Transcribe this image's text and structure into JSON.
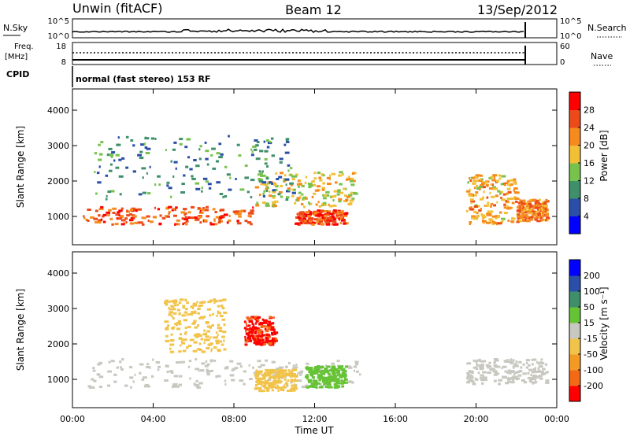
{
  "header": {
    "station": "Unwin (fitACF)",
    "beam": "Beam 12",
    "date": "13/Sep/2012"
  },
  "top_panels": {
    "nsky": {
      "label": "N.Sky",
      "ticks": [
        "10^5",
        "10^0"
      ]
    },
    "nsearch": {
      "label": "N.Search",
      "ticks": [
        "10^5",
        "10^0"
      ]
    },
    "freq": {
      "label_line1": "Freq.",
      "label_line2": "[MHz]",
      "ticks": [
        "18",
        "8"
      ]
    },
    "nave": {
      "label": "Nave",
      "ticks": [
        "60",
        "0"
      ]
    },
    "cpid": {
      "label": "CPID",
      "text": "normal (fast stereo) 153 RF"
    }
  },
  "colors": {
    "power_scale": [
      "#0000ff",
      "#2b4fa8",
      "#3f8f6a",
      "#77c24d",
      "#f2c037",
      "#f58a1e",
      "#ec4a1a",
      "#ff0000"
    ],
    "velocity_scale": [
      "#ff0000",
      "#f36a16",
      "#f39a25",
      "#f2c34a",
      "#c8c8c0",
      "#67c336",
      "#3f8f6a",
      "#2b4fa8",
      "#0000ff"
    ]
  },
  "chart_data": [
    {
      "type": "heatmap",
      "panel": "power",
      "ylabel": "Slant Range [km]",
      "ylim": [
        200,
        4600
      ],
      "yticks": [
        "1000",
        "2000",
        "3000",
        "4000"
      ],
      "xlim_hours": [
        0,
        24
      ],
      "colorbar": {
        "label": "Power [dB]",
        "ticks": [
          "4",
          "8",
          "12",
          "16",
          "20",
          "24",
          "28"
        ],
        "range": [
          0,
          32
        ]
      },
      "regions": [
        {
          "t": [
            0.5,
            9.0
          ],
          "r": [
            800,
            1300
          ],
          "value": 25
        },
        {
          "t": [
            9.0,
            14.0
          ],
          "r": [
            1300,
            2300
          ],
          "value": 17
        },
        {
          "t": [
            11.0,
            13.5
          ],
          "r": [
            800,
            1200
          ],
          "value": 27
        },
        {
          "t": [
            1.0,
            11.0
          ],
          "r": [
            1500,
            3300
          ],
          "value": 9
        },
        {
          "t": [
            19.5,
            22.0
          ],
          "r": [
            800,
            2200
          ],
          "value": 20
        },
        {
          "t": [
            22.0,
            23.5
          ],
          "r": [
            900,
            1500
          ],
          "value": 23
        }
      ]
    },
    {
      "type": "heatmap",
      "panel": "velocity",
      "ylabel": "Slant Range [km]",
      "xlabel": "Time UT",
      "ylim": [
        200,
        4600
      ],
      "yticks": [
        "1000",
        "2000",
        "3000",
        "4000"
      ],
      "xticks": [
        "00:00",
        "04:00",
        "08:00",
        "12:00",
        "16:00",
        "20:00",
        "00:00"
      ],
      "xlim_hours": [
        0,
        24
      ],
      "colorbar": {
        "label": "Velocity [m s⁻¹]",
        "ticks": [
          "-200",
          "-100",
          "-50",
          "-15",
          "15",
          "50",
          "100",
          "200"
        ],
        "range": [
          -250,
          250
        ]
      },
      "regions": [
        {
          "t": [
            0.5,
            14.5
          ],
          "r": [
            800,
            1600
          ],
          "value": 0
        },
        {
          "t": [
            19.5,
            23.5
          ],
          "r": [
            900,
            1600
          ],
          "value": 0
        },
        {
          "t": [
            4.5,
            7.5
          ],
          "r": [
            1800,
            3300
          ],
          "value": -40
        },
        {
          "t": [
            8.5,
            10.0
          ],
          "r": [
            2000,
            2800
          ],
          "value": -200
        },
        {
          "t": [
            11.5,
            13.5
          ],
          "r": [
            800,
            1400
          ],
          "value": 40
        },
        {
          "t": [
            9.0,
            11.0
          ],
          "r": [
            700,
            1300
          ],
          "value": -40
        }
      ]
    }
  ]
}
